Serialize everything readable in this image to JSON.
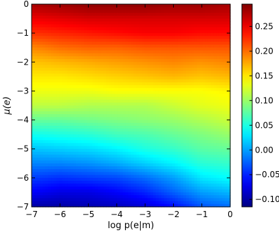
{
  "chart_data": {
    "type": "heatmap",
    "title": "",
    "xlabel": "log p(e|m)",
    "ylabel": "μ(e)",
    "xlim": [
      -7,
      0
    ],
    "ylim": [
      -7,
      0
    ],
    "x_ticks": [
      "−7",
      "−6",
      "−5",
      "−4",
      "−3",
      "−2",
      "−1",
      "0"
    ],
    "y_ticks": [
      "0",
      "−1",
      "−2",
      "−3",
      "−4",
      "−5",
      "−6",
      "−7"
    ],
    "colorbar": {
      "vmin": -0.115,
      "vmax": 0.295,
      "ticks": [
        "0.25",
        "0.20",
        "0.15",
        "0.10",
        "0.05",
        "0.00",
        "−0.05",
        "−0.10"
      ],
      "colormap": "jet"
    },
    "x_samples": [
      -7,
      -6,
      -5,
      -4,
      -3,
      -2,
      -1,
      0
    ],
    "y_samples": [
      0,
      -0.5,
      -1,
      -1.5,
      -2,
      -2.5,
      -3,
      -3.5,
      -4,
      -4.5,
      -5,
      -5.5,
      -6,
      -6.5,
      -7
    ],
    "grid": [
      [
        0.28,
        0.285,
        0.29,
        0.29,
        0.29,
        0.285,
        0.285,
        0.28
      ],
      [
        0.25,
        0.255,
        0.26,
        0.26,
        0.26,
        0.26,
        0.26,
        0.26
      ],
      [
        0.225,
        0.23,
        0.235,
        0.24,
        0.245,
        0.245,
        0.24,
        0.24
      ],
      [
        0.19,
        0.2,
        0.205,
        0.205,
        0.21,
        0.21,
        0.21,
        0.21
      ],
      [
        0.165,
        0.17,
        0.175,
        0.18,
        0.185,
        0.19,
        0.185,
        0.19
      ],
      [
        0.15,
        0.15,
        0.155,
        0.16,
        0.165,
        0.17,
        0.165,
        0.17
      ],
      [
        0.135,
        0.135,
        0.135,
        0.14,
        0.14,
        0.14,
        0.14,
        0.145
      ],
      [
        0.115,
        0.115,
        0.11,
        0.11,
        0.11,
        0.12,
        0.13,
        0.135
      ],
      [
        0.08,
        0.08,
        0.085,
        0.09,
        0.095,
        0.1,
        0.11,
        0.12
      ],
      [
        0.045,
        0.05,
        0.055,
        0.065,
        0.07,
        0.08,
        0.09,
        0.1
      ],
      [
        0.015,
        0.02,
        0.025,
        0.035,
        0.05,
        0.06,
        0.075,
        0.08
      ],
      [
        -0.01,
        -0.01,
        -0.005,
        0.005,
        0.02,
        0.035,
        0.055,
        0.06
      ],
      [
        -0.04,
        -0.045,
        -0.04,
        -0.035,
        -0.02,
        0.0,
        0.03,
        0.04
      ],
      [
        -0.065,
        -0.075,
        -0.075,
        -0.065,
        -0.05,
        -0.025,
        0.0,
        0.01
      ],
      [
        -0.1,
        -0.1,
        -0.095,
        -0.09,
        -0.08,
        -0.06,
        -0.03,
        -0.02
      ]
    ]
  }
}
